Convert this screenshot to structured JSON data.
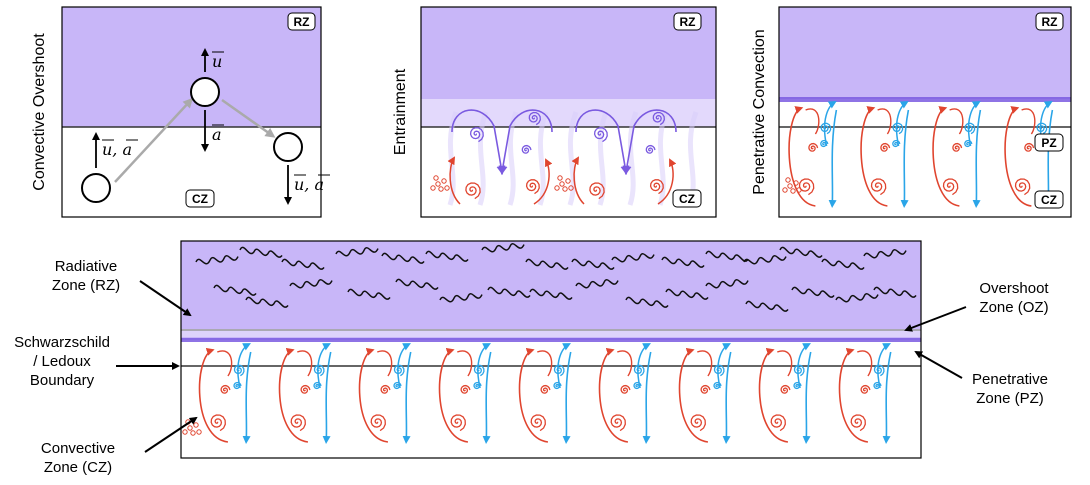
{
  "panels": [
    {
      "side_label": "Convective Overshoot",
      "top_tag": "RZ",
      "bottom_tag": "CZ",
      "vectors": {
        "up": "u",
        "mid": "a",
        "lower_left": "u, a",
        "lower_right": "u, a"
      }
    },
    {
      "side_label": "Entrainment",
      "top_tag": "RZ",
      "bottom_tag": "CZ"
    },
    {
      "side_label": "Penetrative Convection",
      "top_tag": "RZ",
      "mid_tag": "PZ",
      "bottom_tag": "CZ"
    }
  ],
  "bottom": {
    "labels_left": {
      "rz": [
        "Radiative",
        "Zone (RZ)"
      ],
      "boundary": [
        "Schwarzschild",
        "/ Ledoux",
        "Boundary"
      ],
      "cz": [
        "Convective",
        "Zone (CZ)"
      ]
    },
    "labels_right": {
      "oz": [
        "Overshoot",
        "Zone (OZ)"
      ],
      "pz": [
        "Penetrative",
        "Zone (PZ)"
      ]
    }
  },
  "colors": {
    "radiative": "#c8b6f8",
    "entrain_light": "#e3d9fc",
    "oz_light": "#ddd2fb",
    "boundary_purple": "#7a5ae0",
    "red": "#e0452f",
    "blue": "#2aa5e8",
    "grey_path": "#aaaaaa"
  },
  "icons": [
    "wave-icon",
    "spiral-icon",
    "arrow-icon",
    "parcel-circle-icon"
  ]
}
